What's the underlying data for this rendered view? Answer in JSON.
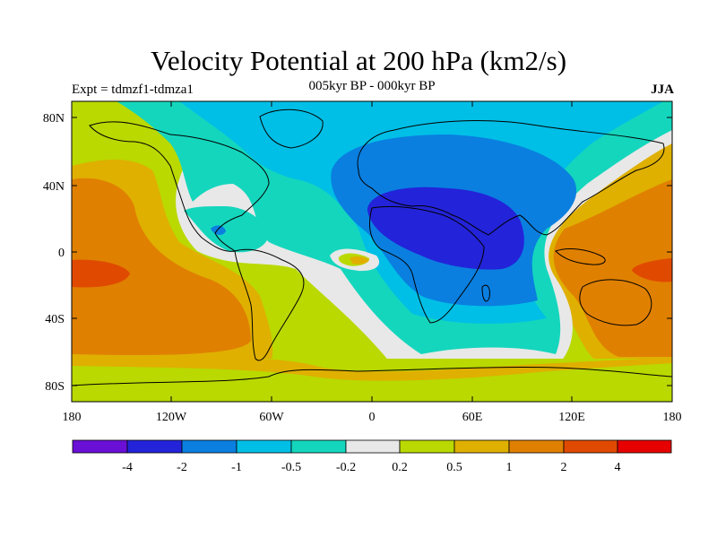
{
  "title": "Velocity Potential at 200 hPa (km2/s)",
  "left_label": "Expt = tdmzf1-tdmza1",
  "center_label": "005kyr BP - 000kyr BP",
  "right_label": "JJA",
  "colors": {
    "c1": "#6a0fd6",
    "c2": "#2323d9",
    "c3": "#0a7fe0",
    "c4": "#00bfe6",
    "c5": "#14d6bd",
    "c6": "#e8e8e8",
    "c7": "#b9d900",
    "c8": "#dfb000",
    "c9": "#e08000",
    "c10": "#e04a00",
    "c11": "#e60000"
  },
  "map": {
    "lat_ticks": [
      "80N",
      "40N",
      "0",
      "40S",
      "80S"
    ],
    "lon_ticks": [
      "180",
      "120W",
      "60W",
      "0",
      "60E",
      "120E",
      "180"
    ]
  },
  "colorbar": {
    "labels": [
      "-4",
      "-2",
      "-1",
      "-0.5",
      "-0.2",
      "0.2",
      "0.5",
      "1",
      "2",
      "4"
    ]
  }
}
